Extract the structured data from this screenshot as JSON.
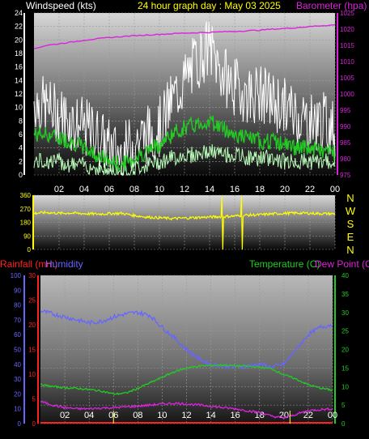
{
  "header": {
    "windspeed_title": "Windspeed (kts)",
    "graph_title": "24 hour graph day : May 03 2025",
    "barometer_title": "Barometer (hpa)"
  },
  "legend_bottom": {
    "rainfall": "Rainfall (mm)",
    "humidity": "Humidity",
    "temperature": "Temperature (C)",
    "dew_point": "Dew Point (C)"
  },
  "colors": {
    "windspeed_axis": "#ffffff",
    "barometer": "#dd22dd",
    "wind_gust": "#ffffff",
    "wind_avg": "#22cc22",
    "wind_min": "#bbffbb",
    "wind_dir": "#ffff00",
    "rainfall": "#ff2222",
    "humidity": "#6666ff",
    "temperature": "#22cc22",
    "dew_point": "#dd22dd",
    "rain_bar": "#ffff44"
  },
  "compass_labels": [
    "N",
    "W",
    "S",
    "E",
    "N"
  ],
  "chart_data": [
    {
      "type": "line",
      "title": "24 hour graph day : May 03 2025",
      "x": [
        0,
        1,
        2,
        3,
        4,
        5,
        6,
        7,
        8,
        9,
        10,
        11,
        12,
        13,
        14,
        15,
        16,
        17,
        18,
        19,
        20,
        21,
        22,
        23,
        24
      ],
      "x_tick_labels": [
        "02",
        "04",
        "06",
        "08",
        "10",
        "12",
        "14",
        "16",
        "18",
        "20",
        "22",
        "00"
      ],
      "y_left": {
        "label": "Windspeed (kts)",
        "range": [
          0,
          24
        ],
        "ticks": [
          0,
          2,
          4,
          6,
          8,
          10,
          12,
          14,
          16,
          18,
          20,
          22,
          24
        ]
      },
      "y_right": {
        "label": "Barometer (hpa)",
        "range": [
          975,
          1025
        ],
        "ticks": [
          975,
          980,
          985,
          990,
          995,
          1000,
          1005,
          1010,
          1015,
          1020,
          1025
        ]
      },
      "series": [
        {
          "name": "Barometer",
          "axis": "right",
          "values": [
            1014,
            1015,
            1015.5,
            1016,
            1016.6,
            1017,
            1017.4,
            1017.7,
            1018,
            1018.2,
            1018.4,
            1018.6,
            1018.8,
            1018.9,
            1019,
            1019.2,
            1019.3,
            1019.5,
            1019.7,
            1020,
            1020.2,
            1020.5,
            1020.8,
            1021.1,
            1021.3
          ]
        },
        {
          "name": "Gust",
          "axis": "left",
          "values": [
            11,
            10,
            9,
            8,
            7,
            6,
            4,
            3,
            5,
            6,
            7,
            11,
            14,
            17,
            19,
            15,
            13,
            12,
            12,
            11,
            10,
            9,
            8,
            8,
            7
          ]
        },
        {
          "name": "Average",
          "axis": "left",
          "values": [
            6,
            6,
            5.5,
            5,
            4,
            3,
            2,
            1.5,
            2.5,
            3.5,
            4.5,
            6,
            7,
            7.5,
            8,
            7,
            6,
            5.5,
            5,
            5,
            4.5,
            4,
            4,
            3.5,
            3.5
          ]
        },
        {
          "name": "Minimum",
          "axis": "left",
          "values": [
            2,
            2,
            2,
            1.5,
            1.5,
            1,
            0.5,
            0.5,
            1,
            1.5,
            2,
            2.5,
            3,
            3,
            3.5,
            3,
            3,
            2.5,
            2.5,
            2.5,
            2,
            2,
            2,
            2,
            2
          ]
        }
      ],
      "grid": true
    },
    {
      "type": "line",
      "y_left": {
        "range": [
          0,
          360
        ],
        "ticks": [
          0,
          90,
          180,
          270,
          360
        ]
      },
      "y_right_labels": [
        "N",
        "W",
        "S",
        "E",
        "N"
      ],
      "series": [
        {
          "name": "Wind direction",
          "values": [
            240,
            245,
            240,
            242,
            238,
            235,
            238,
            240,
            225,
            215,
            210,
            205,
            208,
            212,
            215,
            218,
            222,
            228,
            230,
            236,
            240,
            242,
            240,
            238,
            236
          ]
        }
      ],
      "grid": true
    },
    {
      "type": "line",
      "x": [
        0,
        1,
        2,
        3,
        4,
        5,
        6,
        7,
        8,
        9,
        10,
        11,
        12,
        13,
        14,
        15,
        16,
        17,
        18,
        19,
        20,
        21,
        22,
        23,
        24
      ],
      "x_tick_labels": [
        "02",
        "04",
        "06",
        "08",
        "10",
        "12",
        "14",
        "16",
        "18",
        "20",
        "22",
        "00"
      ],
      "y_humidity": {
        "label": "Humidity",
        "range": [
          0,
          100
        ],
        "ticks": [
          0,
          10,
          20,
          30,
          40,
          50,
          60,
          70,
          80,
          90,
          100
        ]
      },
      "y_rainfall": {
        "label": "Rainfall (mm)",
        "range": [
          0,
          30
        ],
        "ticks": [
          0,
          5,
          10,
          15,
          20,
          25,
          30
        ]
      },
      "y_temperature": {
        "label": "Temperature (C)",
        "range": [
          0,
          40
        ],
        "ticks": [
          0,
          5,
          10,
          15,
          20,
          25,
          30,
          35,
          40
        ]
      },
      "series": [
        {
          "name": "Humidity",
          "axis": "humidity",
          "values": [
            76,
            74,
            72,
            70,
            68,
            69,
            72,
            74,
            75,
            73,
            65,
            58,
            50,
            44,
            40,
            39,
            38,
            39,
            40,
            38,
            40,
            50,
            60,
            65,
            67
          ]
        },
        {
          "name": "Temperature",
          "axis": "temperature",
          "values": [
            10.5,
            10,
            9.7,
            9.5,
            9.2,
            8.8,
            8,
            8.2,
            9.5,
            11,
            12.5,
            14,
            15,
            15.5,
            15.7,
            15.8,
            15.6,
            15.5,
            15.2,
            14.8,
            13.2,
            12,
            10.5,
            9.6,
            9
          ]
        },
        {
          "name": "Dew Point",
          "axis": "temperature",
          "values": [
            6,
            5,
            4.3,
            4,
            4,
            4.2,
            4.3,
            4.5,
            4.7,
            5,
            5.3,
            5.5,
            5.3,
            5,
            4.7,
            4.3,
            4,
            3.5,
            3,
            2,
            1.5,
            2.5,
            3.5,
            3.8,
            4
          ]
        },
        {
          "name": "Rainfall",
          "axis": "rainfall",
          "values": [
            0,
            0,
            0,
            0,
            0,
            0,
            0,
            0,
            0,
            0,
            0,
            0,
            0,
            0,
            0,
            0,
            0,
            0,
            0,
            0,
            0,
            0,
            0,
            0,
            0
          ]
        }
      ],
      "grid": true
    }
  ]
}
